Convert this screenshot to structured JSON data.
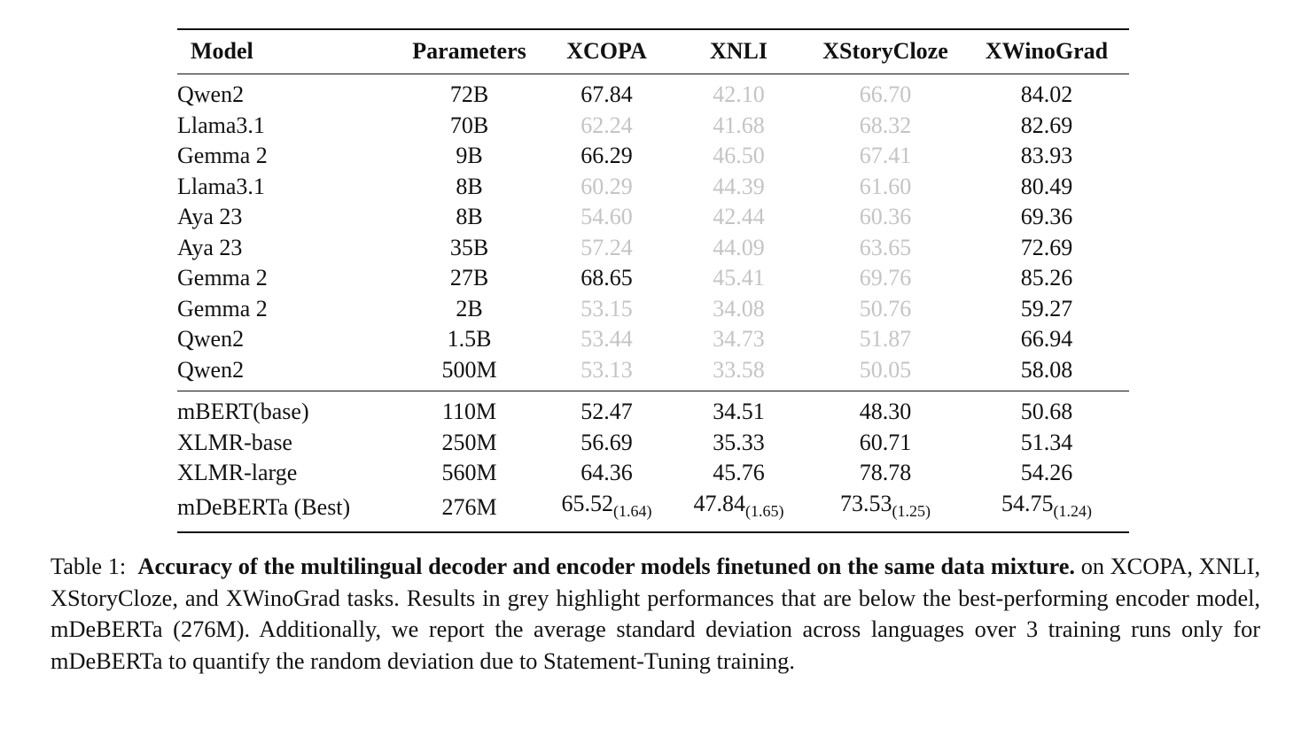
{
  "table": {
    "headers": {
      "model": "Model",
      "parameters": "Parameters",
      "xcopa": "XCOPA",
      "xnli": "XNLI",
      "xstorycloze": "XStoryCloze",
      "xwinograd": "XWinoGrad"
    },
    "decoder_rows": [
      {
        "model": "Qwen2",
        "params": "72B",
        "xcopa": "67.84",
        "xcopa_grey": false,
        "xnli": "42.10",
        "xnli_grey": true,
        "story": "66.70",
        "story_grey": true,
        "wino": "84.02",
        "wino_grey": false
      },
      {
        "model": "Llama3.1",
        "params": "70B",
        "xcopa": "62.24",
        "xcopa_grey": true,
        "xnli": "41.68",
        "xnli_grey": true,
        "story": "68.32",
        "story_grey": true,
        "wino": "82.69",
        "wino_grey": false
      },
      {
        "model": "Gemma 2",
        "params": "9B",
        "xcopa": "66.29",
        "xcopa_grey": false,
        "xnli": "46.50",
        "xnli_grey": true,
        "story": "67.41",
        "story_grey": true,
        "wino": "83.93",
        "wino_grey": false
      },
      {
        "model": "Llama3.1",
        "params": "8B",
        "xcopa": "60.29",
        "xcopa_grey": true,
        "xnli": "44.39",
        "xnli_grey": true,
        "story": "61.60",
        "story_grey": true,
        "wino": "80.49",
        "wino_grey": false
      },
      {
        "model": "Aya 23",
        "params": "8B",
        "xcopa": "54.60",
        "xcopa_grey": true,
        "xnli": "42.44",
        "xnli_grey": true,
        "story": "60.36",
        "story_grey": true,
        "wino": "69.36",
        "wino_grey": false
      },
      {
        "model": "Aya 23",
        "params": "35B",
        "xcopa": "57.24",
        "xcopa_grey": true,
        "xnli": "44.09",
        "xnli_grey": true,
        "story": "63.65",
        "story_grey": true,
        "wino": "72.69",
        "wino_grey": false
      },
      {
        "model": "Gemma 2",
        "params": "27B",
        "xcopa": "68.65",
        "xcopa_grey": false,
        "xnli": "45.41",
        "xnli_grey": true,
        "story": "69.76",
        "story_grey": true,
        "wino": "85.26",
        "wino_grey": false
      },
      {
        "model": "Gemma 2",
        "params": "2B",
        "xcopa": "53.15",
        "xcopa_grey": true,
        "xnli": "34.08",
        "xnli_grey": true,
        "story": "50.76",
        "story_grey": true,
        "wino": "59.27",
        "wino_grey": false
      },
      {
        "model": "Qwen2",
        "params": "1.5B",
        "xcopa": "53.44",
        "xcopa_grey": true,
        "xnli": "34.73",
        "xnli_grey": true,
        "story": "51.87",
        "story_grey": true,
        "wino": "66.94",
        "wino_grey": false
      },
      {
        "model": "Qwen2",
        "params": "500M",
        "xcopa": "53.13",
        "xcopa_grey": true,
        "xnli": "33.58",
        "xnli_grey": true,
        "story": "50.05",
        "story_grey": true,
        "wino": "58.08",
        "wino_grey": false
      }
    ],
    "encoder_rows": [
      {
        "model": "mBERT(base)",
        "params": "110M",
        "xcopa": "52.47",
        "xnli": "34.51",
        "story": "48.30",
        "wino": "50.68"
      },
      {
        "model": "XLMR-base",
        "params": "250M",
        "xcopa": "56.69",
        "xnli": "35.33",
        "story": "60.71",
        "wino": "51.34"
      },
      {
        "model": "XLMR-large",
        "params": "560M",
        "xcopa": "64.36",
        "xnli": "45.76",
        "story": "78.78",
        "wino": "54.26"
      }
    ],
    "best_row": {
      "model": "mDeBERTa (Best)",
      "params": "276M",
      "xcopa": "65.52",
      "xcopa_sd": "(1.64)",
      "xnli": "47.84",
      "xnli_sd": "(1.65)",
      "story": "73.53",
      "story_sd": "(1.25)",
      "wino": "54.75",
      "wino_sd": "(1.24)"
    }
  },
  "caption": {
    "label": "Table 1:",
    "title": "Accuracy of the multilingual decoder and encoder models finetuned on the same data mixture.",
    "body": "on XCOPA, XNLI, XStoryCloze, and XWinoGrad tasks. Results in grey highlight performances that are below the best-performing encoder model, mDeBERTa (276M). Additionally, we report the average standard deviation across languages over 3 training runs only for mDeBERTa to quantify the random deviation due to Statement-Tuning training."
  },
  "colors": {
    "grey_highlight": "#c4c4c4",
    "text": "#111111",
    "rule": "#111111"
  }
}
